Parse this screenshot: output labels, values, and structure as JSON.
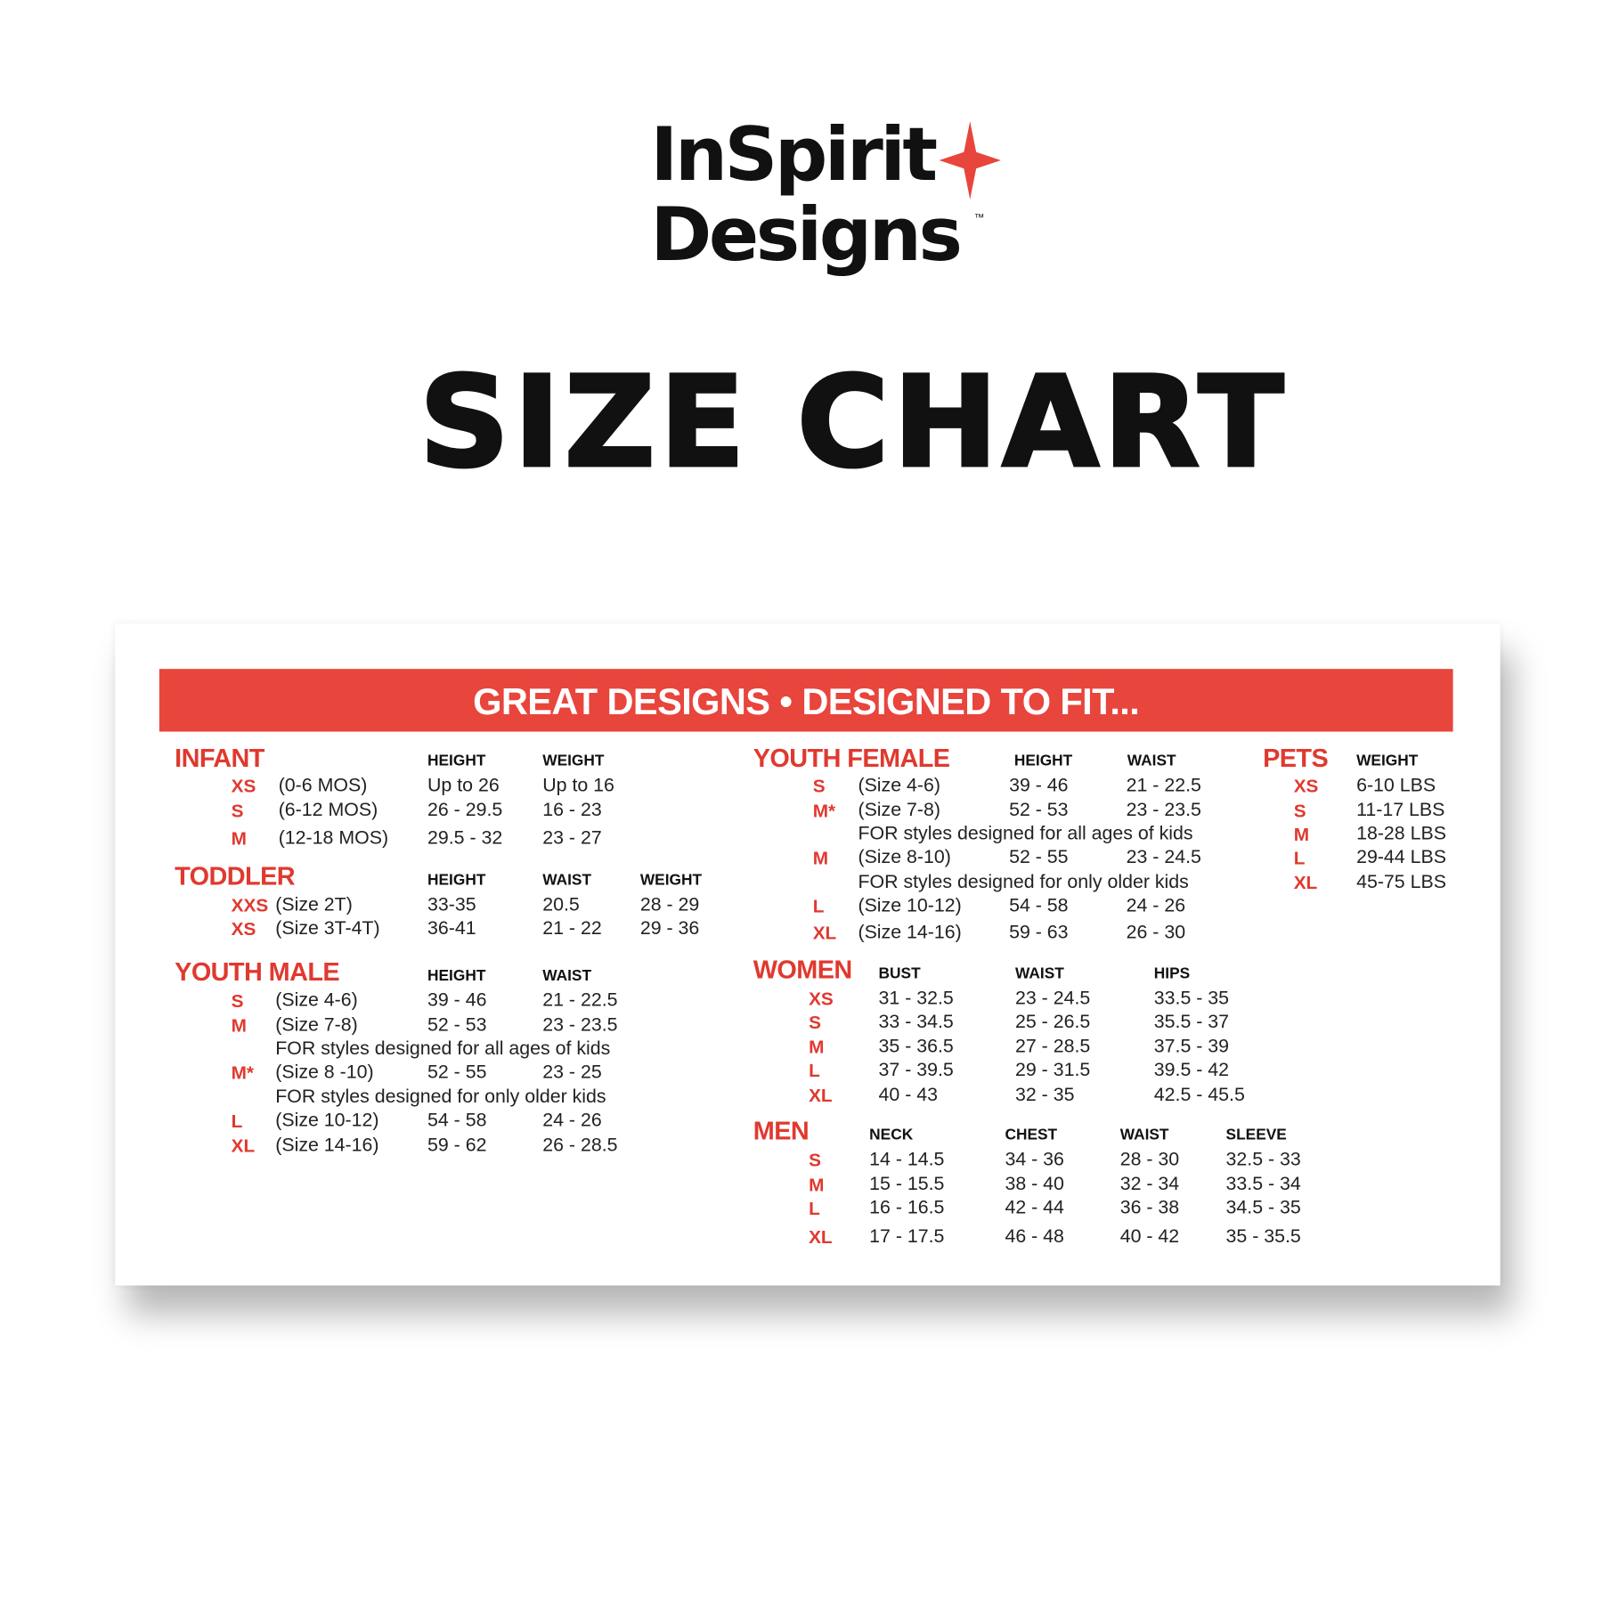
{
  "brand": {
    "line1": "InSpirit",
    "line2": "Designs",
    "trademark": "™",
    "accent_color": "#e8453c",
    "star_icon": "four-point-star-icon"
  },
  "title": "SIZE CHART",
  "banner": "GREAT DESIGNS • DESIGNED TO FIT...",
  "sections": {
    "infant": {
      "title": "INFANT",
      "headers": [
        "HEIGHT",
        "WEIGHT"
      ],
      "rows": [
        {
          "size": "XS",
          "desc": "(0-6 MOS)",
          "values": [
            "Up to 26",
            "Up to 16"
          ]
        },
        {
          "size": "S",
          "desc": "(6-12 MOS)",
          "values": [
            "26 - 29.5",
            "16 - 23"
          ]
        },
        {
          "size": "M",
          "desc": "(12-18 MOS)",
          "values": [
            "29.5 - 32",
            "23 - 27"
          ]
        }
      ]
    },
    "toddler": {
      "title": "TODDLER",
      "headers": [
        "HEIGHT",
        "WAIST",
        "WEIGHT"
      ],
      "rows": [
        {
          "size": "XXS",
          "desc": "(Size 2T)",
          "values": [
            "33-35",
            "20.5",
            "28 - 29"
          ]
        },
        {
          "size": "XS",
          "desc": "(Size 3T-4T)",
          "values": [
            "36-41",
            "21 - 22",
            "29 - 36"
          ]
        }
      ]
    },
    "youth_male": {
      "title": "YOUTH MALE",
      "headers": [
        "HEIGHT",
        "WAIST"
      ],
      "rows": [
        {
          "size": "S",
          "desc": "(Size 4-6)",
          "values": [
            "39 - 46",
            "21 - 22.5"
          ]
        },
        {
          "size": "M",
          "desc": "(Size 7-8)",
          "values": [
            "52 - 53",
            "23 - 23.5"
          ]
        },
        {
          "note": "FOR styles designed for all ages of kids"
        },
        {
          "size": "M*",
          "desc": "(Size 8 -10)",
          "values": [
            "52 - 55",
            "23 - 25"
          ]
        },
        {
          "note": "FOR styles designed for only older kids"
        },
        {
          "size": "L",
          "desc": "(Size 10-12)",
          "values": [
            "54 - 58",
            "24 - 26"
          ]
        },
        {
          "size": "XL",
          "desc": "(Size 14-16)",
          "values": [
            "59 - 62",
            "26 - 28.5"
          ]
        }
      ]
    },
    "youth_female": {
      "title": "YOUTH FEMALE",
      "headers": [
        "HEIGHT",
        "WAIST"
      ],
      "rows": [
        {
          "size": "S",
          "desc": "(Size 4-6)",
          "values": [
            "39 - 46",
            "21 - 22.5"
          ]
        },
        {
          "size": "M*",
          "desc": "(Size 7-8)",
          "values": [
            "52 - 53",
            "23 - 23.5"
          ]
        },
        {
          "note": "FOR styles designed for all ages of kids"
        },
        {
          "size": "M",
          "desc": "(Size 8-10)",
          "values": [
            "52 - 55",
            "23 - 24.5"
          ]
        },
        {
          "note": "FOR styles designed for only older kids"
        },
        {
          "size": "L",
          "desc": "(Size 10-12)",
          "values": [
            "54 - 58",
            "24 - 26"
          ]
        },
        {
          "size": "XL",
          "desc": "(Size 14-16)",
          "values": [
            "59 - 63",
            "26 - 30"
          ]
        }
      ]
    },
    "pets": {
      "title": "PETS",
      "headers": [
        "WEIGHT"
      ],
      "rows": [
        {
          "size": "XS",
          "values": [
            "6-10 LBS"
          ]
        },
        {
          "size": "S",
          "values": [
            "11-17 LBS"
          ]
        },
        {
          "size": "M",
          "values": [
            "18-28 LBS"
          ]
        },
        {
          "size": "L",
          "values": [
            "29-44 LBS"
          ]
        },
        {
          "size": "XL",
          "values": [
            "45-75 LBS"
          ]
        }
      ]
    },
    "women": {
      "title": "WOMEN",
      "headers": [
        "BUST",
        "WAIST",
        "HIPS"
      ],
      "rows": [
        {
          "size": "XS",
          "values": [
            "31 - 32.5",
            "23 - 24.5",
            "33.5 - 35"
          ]
        },
        {
          "size": "S",
          "values": [
            "33 - 34.5",
            "25 - 26.5",
            "35.5 - 37"
          ]
        },
        {
          "size": "M",
          "values": [
            "35 - 36.5",
            "27 - 28.5",
            "37.5 - 39"
          ]
        },
        {
          "size": "L",
          "values": [
            "37 - 39.5",
            "29 - 31.5",
            "39.5 - 42"
          ]
        },
        {
          "size": "XL",
          "values": [
            "40 - 43",
            "32 - 35",
            "42.5 - 45.5"
          ]
        }
      ]
    },
    "men": {
      "title": "MEN",
      "headers": [
        "NECK",
        "CHEST",
        "WAIST",
        "SLEEVE"
      ],
      "rows": [
        {
          "size": "S",
          "values": [
            "14 - 14.5",
            "34 - 36",
            "28 - 30",
            "32.5 - 33"
          ]
        },
        {
          "size": "M",
          "values": [
            "15 - 15.5",
            "38 - 40",
            "32 - 34",
            "33.5 - 34"
          ]
        },
        {
          "size": "L",
          "values": [
            "16 - 16.5",
            "42 - 44",
            "36 - 38",
            "34.5 - 35"
          ]
        },
        {
          "size": "XL",
          "values": [
            "17 - 17.5",
            "46 - 48",
            "40 - 42",
            "35 - 35.5"
          ]
        }
      ]
    }
  }
}
